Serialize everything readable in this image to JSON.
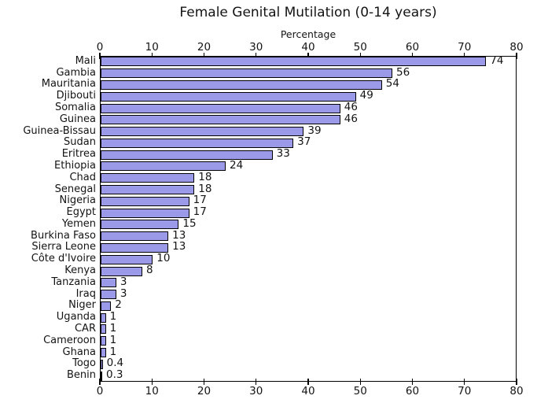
{
  "chart_data": {
    "type": "bar",
    "orientation": "horizontal",
    "title": "Female Genital Mutilation (0-14 years)",
    "axis_label": "Percentage",
    "categories": [
      "Mali",
      "Gambia",
      "Mauritania",
      "Djibouti",
      "Somalia",
      "Guinea",
      "Guinea-Bissau",
      "Sudan",
      "Eritrea",
      "Ethiopia",
      "Chad",
      "Senegal",
      "Nigeria",
      "Egypt",
      "Yemen",
      "Burkina Faso",
      "Sierra Leone",
      "Côte d'Ivoire",
      "Kenya",
      "Tanzania",
      "Iraq",
      "Niger",
      "Uganda",
      "CAR",
      "Cameroon",
      "Ghana",
      "Togo",
      "Benin"
    ],
    "values": [
      74,
      56,
      54,
      49,
      46,
      46,
      39,
      37,
      33,
      24,
      18,
      18,
      17,
      17,
      15,
      13,
      13,
      10,
      8,
      3,
      3,
      2,
      1,
      1,
      1,
      1,
      0.4,
      0.3
    ],
    "xlim": [
      0,
      80
    ],
    "xticks": [
      0,
      10,
      20,
      30,
      40,
      50,
      60,
      70,
      80
    ],
    "ticks_mirrored_top_and_bottom": true,
    "grid": "off",
    "legend": "none",
    "bar_color": "#9a9ae8",
    "bar_edge_color": "#000000",
    "value_labels_shown": true
  }
}
